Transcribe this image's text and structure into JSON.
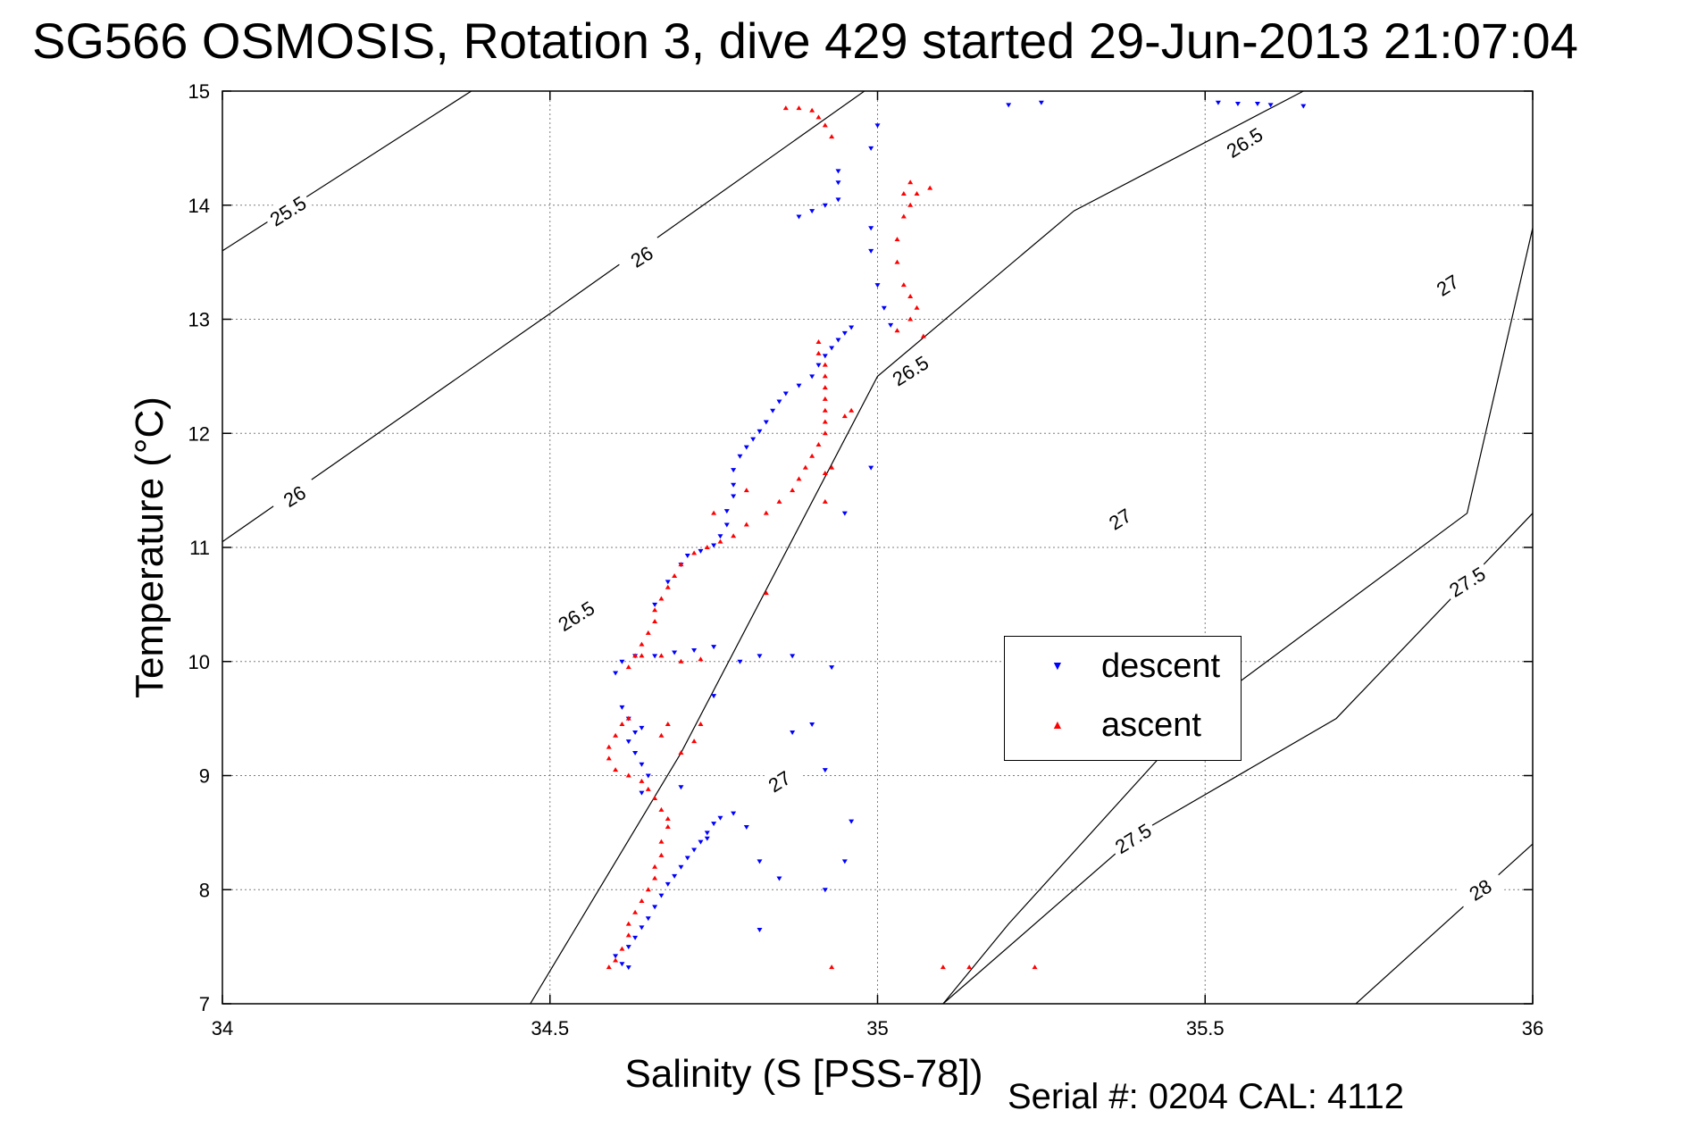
{
  "title": "SG566 OSMOSIS, Rotation 3, dive 429 started 29-Jun-2013 21:07:04",
  "serial_text": "Serial #: 0204  CAL: 4112",
  "colors": {
    "descent": "#0000ff",
    "ascent": "#ff0000",
    "grid": "#7f7f7f",
    "contour": "#000000"
  },
  "chart_data": {
    "type": "scatter",
    "xlabel": "Salinity (S [PSS-78])",
    "ylabel": "Temperature (°C)",
    "xlim": [
      34,
      36
    ],
    "ylim": [
      7,
      15
    ],
    "xticks": [
      34,
      34.5,
      35,
      35.5,
      36
    ],
    "xtick_labels": [
      "34",
      "34.5",
      "35",
      "35.5",
      "36"
    ],
    "yticks": [
      7,
      8,
      9,
      10,
      11,
      12,
      13,
      14,
      15
    ],
    "ytick_labels": [
      "7",
      "8",
      "9",
      "10",
      "11",
      "12",
      "13",
      "14",
      "15"
    ],
    "grid": true,
    "legend_position": "right-middle",
    "density_contours": [
      {
        "sigma": 25.5,
        "label": "25.5",
        "points": [
          [
            34.0,
            13.6
          ],
          [
            34.38,
            15.0
          ]
        ],
        "labels_at": [
          [
            34.1,
            13.95
          ]
        ]
      },
      {
        "sigma": 26.0,
        "label": "26",
        "points": [
          [
            34.0,
            11.05
          ],
          [
            34.5,
            13.05
          ],
          [
            34.98,
            15.0
          ]
        ],
        "labels_at": [
          [
            34.11,
            11.45
          ],
          [
            34.64,
            13.55
          ]
        ]
      },
      {
        "sigma": 26.5,
        "label": "26.5",
        "points": [
          [
            34.47,
            7.0
          ],
          [
            34.7,
            9.2
          ],
          [
            35.0,
            12.5
          ],
          [
            35.3,
            13.95
          ],
          [
            35.65,
            15.0
          ]
        ],
        "labels_at": [
          [
            34.54,
            10.4
          ],
          [
            35.05,
            12.55
          ],
          [
            35.56,
            14.55
          ]
        ]
      },
      {
        "sigma": 27.0,
        "label": "27",
        "points": [
          [
            35.1,
            7.0
          ],
          [
            35.2,
            7.7
          ],
          [
            35.5,
            9.6
          ],
          [
            35.9,
            11.3
          ],
          [
            36.0,
            13.8
          ]
        ],
        "labels_at": [
          [
            34.85,
            8.95
          ],
          [
            35.37,
            11.25
          ],
          [
            35.87,
            13.3
          ]
        ]
      },
      {
        "sigma": 27.5,
        "label": "27.5",
        "points": [
          [
            35.1,
            7.0
          ],
          [
            35.4,
            8.5
          ],
          [
            35.7,
            9.5
          ],
          [
            36.0,
            11.3
          ]
        ],
        "labels_at": [
          [
            35.39,
            8.45
          ],
          [
            35.9,
            10.7
          ]
        ]
      },
      {
        "sigma": 28.0,
        "label": "28",
        "points": [
          [
            35.73,
            7.0
          ],
          [
            36.0,
            8.4
          ]
        ],
        "labels_at": [
          [
            35.92,
            8.0
          ]
        ]
      }
    ],
    "series": [
      {
        "name": "descent",
        "marker": "triangle-down",
        "points": [
          [
            34.62,
            7.32
          ],
          [
            34.61,
            7.35
          ],
          [
            34.6,
            7.42
          ],
          [
            34.62,
            7.5
          ],
          [
            34.63,
            7.58
          ],
          [
            34.64,
            7.67
          ],
          [
            34.65,
            7.75
          ],
          [
            34.66,
            7.85
          ],
          [
            34.67,
            7.95
          ],
          [
            34.68,
            8.05
          ],
          [
            34.69,
            8.12
          ],
          [
            34.7,
            8.2
          ],
          [
            34.71,
            8.28
          ],
          [
            34.72,
            8.35
          ],
          [
            34.73,
            8.42
          ],
          [
            34.74,
            8.5
          ],
          [
            34.75,
            8.58
          ],
          [
            34.76,
            8.63
          ],
          [
            34.78,
            8.67
          ],
          [
            34.64,
            8.85
          ],
          [
            34.65,
            9.0
          ],
          [
            34.64,
            9.1
          ],
          [
            34.63,
            9.2
          ],
          [
            34.62,
            9.3
          ],
          [
            34.63,
            9.38
          ],
          [
            34.64,
            9.42
          ],
          [
            34.62,
            9.5
          ],
          [
            34.61,
            9.6
          ],
          [
            34.6,
            9.9
          ],
          [
            34.61,
            10.0
          ],
          [
            34.63,
            10.05
          ],
          [
            34.66,
            10.05
          ],
          [
            34.69,
            10.08
          ],
          [
            34.72,
            10.1
          ],
          [
            34.75,
            10.13
          ],
          [
            34.66,
            10.5
          ],
          [
            34.68,
            10.7
          ],
          [
            34.7,
            10.85
          ],
          [
            34.71,
            10.93
          ],
          [
            34.73,
            10.97
          ],
          [
            34.75,
            11.02
          ],
          [
            34.76,
            11.1
          ],
          [
            34.77,
            11.2
          ],
          [
            34.77,
            11.32
          ],
          [
            34.78,
            11.45
          ],
          [
            34.78,
            11.55
          ],
          [
            34.78,
            11.68
          ],
          [
            34.79,
            11.8
          ],
          [
            34.8,
            11.88
          ],
          [
            34.81,
            11.95
          ],
          [
            34.82,
            12.02
          ],
          [
            34.83,
            12.1
          ],
          [
            34.84,
            12.2
          ],
          [
            34.85,
            12.28
          ],
          [
            34.86,
            12.35
          ],
          [
            34.88,
            12.42
          ],
          [
            34.9,
            12.5
          ],
          [
            34.91,
            12.6
          ],
          [
            34.92,
            12.68
          ],
          [
            34.93,
            12.75
          ],
          [
            34.94,
            12.82
          ],
          [
            34.95,
            12.88
          ],
          [
            34.96,
            12.93
          ],
          [
            34.88,
            13.9
          ],
          [
            34.9,
            13.95
          ],
          [
            34.92,
            14.0
          ],
          [
            34.94,
            14.05
          ],
          [
            34.94,
            14.2
          ],
          [
            34.94,
            14.3
          ],
          [
            34.99,
            14.5
          ],
          [
            35.0,
            14.7
          ],
          [
            34.99,
            13.8
          ],
          [
            34.99,
            13.6
          ],
          [
            35.0,
            13.3
          ],
          [
            35.01,
            13.1
          ],
          [
            35.02,
            12.95
          ],
          [
            34.99,
            11.7
          ],
          [
            34.95,
            11.3
          ],
          [
            34.7,
            8.9
          ],
          [
            34.74,
            8.45
          ],
          [
            34.8,
            8.55
          ],
          [
            34.82,
            8.25
          ],
          [
            34.85,
            8.1
          ],
          [
            34.92,
            8.0
          ],
          [
            34.82,
            7.65
          ],
          [
            34.9,
            9.45
          ],
          [
            34.87,
            9.38
          ],
          [
            34.92,
            9.05
          ],
          [
            34.96,
            8.6
          ],
          [
            34.95,
            8.25
          ],
          [
            34.75,
            9.7
          ],
          [
            34.79,
            10.0
          ],
          [
            34.82,
            10.05
          ],
          [
            34.87,
            10.05
          ],
          [
            34.93,
            9.95
          ],
          [
            35.2,
            14.88
          ],
          [
            35.25,
            14.9
          ],
          [
            35.52,
            14.9
          ],
          [
            35.55,
            14.89
          ],
          [
            35.58,
            14.89
          ],
          [
            35.6,
            14.88
          ],
          [
            35.65,
            14.87
          ]
        ]
      },
      {
        "name": "ascent",
        "marker": "triangle-up",
        "points": [
          [
            34.59,
            7.32
          ],
          [
            34.6,
            7.38
          ],
          [
            34.61,
            7.48
          ],
          [
            34.62,
            7.6
          ],
          [
            34.62,
            7.7
          ],
          [
            34.63,
            7.8
          ],
          [
            34.64,
            7.9
          ],
          [
            34.65,
            8.0
          ],
          [
            34.66,
            8.1
          ],
          [
            34.66,
            8.2
          ],
          [
            34.67,
            8.3
          ],
          [
            34.67,
            8.42
          ],
          [
            34.68,
            8.55
          ],
          [
            34.68,
            8.62
          ],
          [
            34.67,
            8.7
          ],
          [
            34.66,
            8.8
          ],
          [
            34.65,
            8.88
          ],
          [
            34.64,
            8.95
          ],
          [
            34.62,
            9.0
          ],
          [
            34.6,
            9.05
          ],
          [
            34.59,
            9.15
          ],
          [
            34.59,
            9.25
          ],
          [
            34.6,
            9.35
          ],
          [
            34.61,
            9.45
          ],
          [
            34.62,
            9.5
          ],
          [
            34.62,
            9.95
          ],
          [
            34.63,
            10.05
          ],
          [
            34.64,
            10.15
          ],
          [
            34.65,
            10.25
          ],
          [
            34.66,
            10.35
          ],
          [
            34.66,
            10.45
          ],
          [
            34.67,
            10.55
          ],
          [
            34.68,
            10.65
          ],
          [
            34.69,
            10.75
          ],
          [
            34.7,
            10.85
          ],
          [
            34.72,
            10.95
          ],
          [
            34.74,
            11.0
          ],
          [
            34.76,
            11.05
          ],
          [
            34.78,
            11.1
          ],
          [
            34.8,
            11.2
          ],
          [
            34.83,
            11.3
          ],
          [
            34.85,
            11.4
          ],
          [
            34.87,
            11.5
          ],
          [
            34.88,
            11.6
          ],
          [
            34.89,
            11.7
          ],
          [
            34.9,
            11.8
          ],
          [
            34.91,
            11.9
          ],
          [
            34.92,
            12.0
          ],
          [
            34.92,
            12.1
          ],
          [
            34.92,
            12.2
          ],
          [
            34.92,
            12.3
          ],
          [
            34.92,
            12.4
          ],
          [
            34.92,
            12.5
          ],
          [
            34.92,
            12.6
          ],
          [
            34.91,
            12.7
          ],
          [
            34.91,
            12.8
          ],
          [
            34.64,
            10.05
          ],
          [
            34.67,
            10.05
          ],
          [
            34.7,
            10.0
          ],
          [
            34.73,
            10.02
          ],
          [
            34.75,
            11.3
          ],
          [
            34.8,
            11.5
          ],
          [
            34.83,
            10.6
          ],
          [
            34.72,
            9.3
          ],
          [
            34.7,
            9.2
          ],
          [
            34.67,
            9.35
          ],
          [
            34.68,
            9.45
          ],
          [
            34.73,
            9.45
          ],
          [
            35.03,
            12.9
          ],
          [
            35.05,
            13.0
          ],
          [
            35.06,
            13.1
          ],
          [
            35.05,
            13.2
          ],
          [
            35.04,
            13.3
          ],
          [
            35.03,
            13.5
          ],
          [
            35.03,
            13.7
          ],
          [
            35.04,
            13.9
          ],
          [
            35.05,
            14.0
          ],
          [
            35.06,
            14.1
          ],
          [
            35.08,
            14.15
          ],
          [
            35.05,
            14.2
          ],
          [
            35.04,
            14.1
          ],
          [
            35.07,
            12.85
          ],
          [
            34.96,
            12.2
          ],
          [
            34.95,
            12.15
          ],
          [
            34.92,
            11.65
          ],
          [
            34.92,
            11.4
          ],
          [
            34.93,
            11.7
          ],
          [
            34.86,
            14.85
          ],
          [
            34.88,
            14.85
          ],
          [
            34.9,
            14.83
          ],
          [
            34.91,
            14.77
          ],
          [
            34.92,
            14.7
          ],
          [
            34.93,
            14.6
          ],
          [
            35.1,
            7.32
          ],
          [
            35.14,
            7.32
          ],
          [
            35.24,
            7.32
          ],
          [
            34.93,
            7.32
          ]
        ]
      }
    ]
  }
}
